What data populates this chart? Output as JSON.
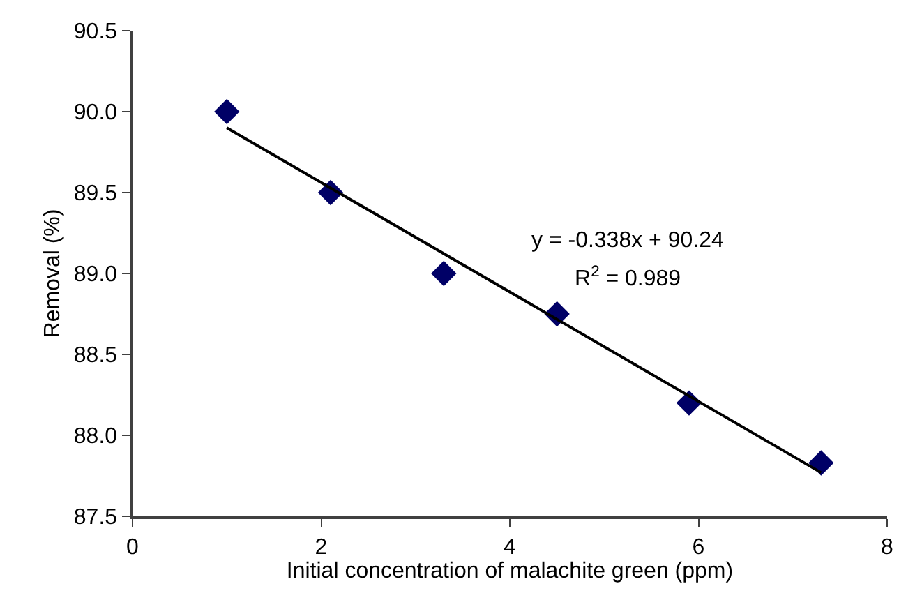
{
  "chart_data": {
    "type": "scatter",
    "xlabel": "Initial concentration of malachite green (ppm)",
    "ylabel": "Removal (%)",
    "x": [
      1,
      2.1,
      3.3,
      4.5,
      5.9,
      7.3
    ],
    "series": [
      {
        "color": "#000066",
        "marker": "diamond",
        "values": [
          90.0,
          89.5,
          89.0,
          88.75,
          88.2,
          87.83
        ]
      },
      {
        "type": "line",
        "color": "#000000",
        "marker": "none",
        "line_style": "solid",
        "x": [
          1,
          7.3
        ],
        "values": [
          89.9,
          87.77
        ]
      }
    ],
    "annotations": [
      "y = -0.338x + 90.24",
      "R$^{2}$ = 0.989"
    ],
    "xlim": [
      0,
      8
    ],
    "xticks": [
      0,
      2,
      4,
      6,
      8
    ],
    "ylim": [
      87.5,
      90.5
    ],
    "yticks": [
      {
        "value": 87.5,
        "label": "87.5"
      },
      {
        "value": 88,
        "label": "88.0"
      },
      {
        "value": 88.5,
        "label": "88.5"
      },
      {
        "value": 89,
        "label": "89.0"
      },
      {
        "value": 89.5,
        "label": "89.5"
      },
      {
        "value": 90,
        "label": "90.0"
      },
      {
        "value": 90.5,
        "label": "90.5"
      }
    ],
    "legend": false
  }
}
